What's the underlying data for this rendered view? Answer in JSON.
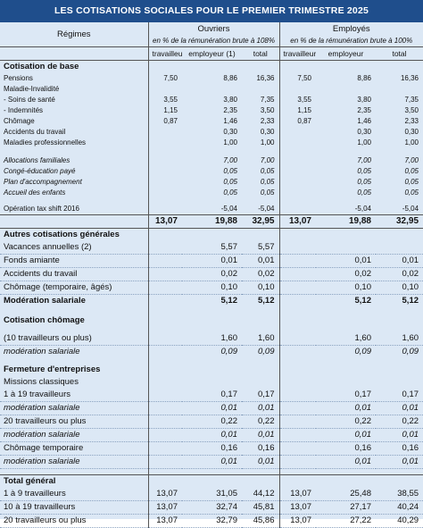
{
  "title": "LES COTISATIONS SOCIALES POUR LE PREMIER TRIMESTRE 2025",
  "header": {
    "regimes": "Régimes",
    "ouvriers": "Ouvriers",
    "employes": "Employés",
    "pct_ouvriers": "en % de la rémunération brute à 108%",
    "pct_employes": "en % de la rémunération brute à 100%",
    "col_travailleur": "travailleur",
    "col_employeur": "employeur (1)",
    "col_total": "total",
    "col_employeur_emp": "employeur"
  },
  "base": {
    "title": "Cotisation de base",
    "rows": [
      {
        "label": "Pensions",
        "v": [
          "7,50",
          "8,86",
          "16,36",
          "7,50",
          "8,86",
          "16,36"
        ]
      },
      {
        "label": "Maladie-Invalidité",
        "v": [
          "",
          "",
          "",
          "",
          "",
          ""
        ]
      },
      {
        "label": "- Soins de santé",
        "v": [
          "3,55",
          "3,80",
          "7,35",
          "3,55",
          "3,80",
          "7,35"
        ]
      },
      {
        "label": "- Indemnités",
        "v": [
          "1,15",
          "2,35",
          "3,50",
          "1,15",
          "2,35",
          "3,50"
        ]
      },
      {
        "label": "Chômage",
        "v": [
          "0,87",
          "1,46",
          "2,33",
          "0,87",
          "1,46",
          "2,33"
        ]
      },
      {
        "label": "Accidents du travail",
        "v": [
          "",
          "0,30",
          "0,30",
          "",
          "0,30",
          "0,30"
        ]
      },
      {
        "label": "Maladies professionnelles",
        "v": [
          "",
          "1,00",
          "1,00",
          "",
          "1,00",
          "1,00"
        ]
      }
    ],
    "italic_rows": [
      {
        "label": "Allocations familiales",
        "v": [
          "",
          "7,00",
          "7,00",
          "",
          "7,00",
          "7,00"
        ]
      },
      {
        "label": "Congé-éducation payé",
        "v": [
          "",
          "0,05",
          "0,05",
          "",
          "0,05",
          "0,05"
        ]
      },
      {
        "label": "Plan d'accompagnement",
        "v": [
          "",
          "0,05",
          "0,05",
          "",
          "0,05",
          "0,05"
        ]
      },
      {
        "label": "Accueil des enfants",
        "v": [
          "",
          "0,05",
          "0,05",
          "",
          "0,05",
          "0,05"
        ]
      }
    ],
    "tax_shift": {
      "label": "Opération tax shift 2016",
      "v": [
        "",
        "-5,04",
        "-5,04",
        "",
        "-5,04",
        "-5,04"
      ]
    },
    "subtotal": [
      "13,07",
      "19,88",
      "32,95",
      "13,07",
      "19,88",
      "32,95"
    ]
  },
  "autres": {
    "title": "Autres cotisations générales",
    "rows": [
      {
        "label": "Vacances annuelles (2)",
        "v": [
          "",
          "5,57",
          "5,57",
          "",
          "",
          ""
        ]
      },
      {
        "label": "Fonds amiante",
        "v": [
          "",
          "0,01",
          "0,01",
          "",
          "0,01",
          "0,01"
        ]
      },
      {
        "label": "Accidents du travail",
        "v": [
          "",
          "0,02",
          "0,02",
          "",
          "0,02",
          "0,02"
        ]
      },
      {
        "label": "Chômage (temporaire, âgés)",
        "v": [
          "",
          "0,10",
          "0,10",
          "",
          "0,10",
          "0,10"
        ]
      }
    ],
    "moderation": {
      "label": "Modération salariale",
      "v": [
        "",
        "5,12",
        "5,12",
        "",
        "5,12",
        "5,12"
      ]
    }
  },
  "chomage": {
    "title": "Cotisation chômage",
    "row": {
      "label": "(10 travailleurs ou plus)",
      "v": [
        "",
        "1,60",
        "1,60",
        "",
        "1,60",
        "1,60"
      ]
    },
    "moderation": {
      "label": "modération salariale",
      "v": [
        "",
        "0,09",
        "0,09",
        "",
        "0,09",
        "0,09"
      ]
    }
  },
  "fermeture": {
    "title": "Fermeture d'entreprises",
    "missions": "Missions classiques",
    "rows": [
      {
        "label": "1 à 19 travailleurs",
        "v": [
          "",
          "0,17",
          "0,17",
          "",
          "0,17",
          "0,17"
        ],
        "italic": false
      },
      {
        "label": "modération salariale",
        "v": [
          "",
          "0,01",
          "0,01",
          "",
          "0,01",
          "0,01"
        ],
        "italic": true
      },
      {
        "label": "20 travailleurs ou plus",
        "v": [
          "",
          "0,22",
          "0,22",
          "",
          "0,22",
          "0,22"
        ],
        "italic": false
      },
      {
        "label": "modération salariale",
        "v": [
          "",
          "0,01",
          "0,01",
          "",
          "0,01",
          "0,01"
        ],
        "italic": true
      },
      {
        "label": "Chômage temporaire",
        "v": [
          "",
          "0,16",
          "0,16",
          "",
          "0,16",
          "0,16"
        ],
        "italic": false
      },
      {
        "label": "modération salariale",
        "v": [
          "",
          "0,01",
          "0,01",
          "",
          "0,01",
          "0,01"
        ],
        "italic": true
      }
    ]
  },
  "total": {
    "title": "Total général",
    "rows": [
      {
        "label": "1 à 9 travailleurs",
        "v": [
          "13,07",
          "31,05",
          "44,12",
          "13,07",
          "25,48",
          "38,55"
        ]
      },
      {
        "label": "10 à 19 travailleurs",
        "v": [
          "13,07",
          "32,74",
          "45,81",
          "13,07",
          "27,17",
          "40,24"
        ]
      },
      {
        "label": "20 travailleurs ou plus",
        "v": [
          "13,07",
          "32,79",
          "45,86",
          "13,07",
          "27,22",
          "40,29"
        ]
      }
    ]
  }
}
